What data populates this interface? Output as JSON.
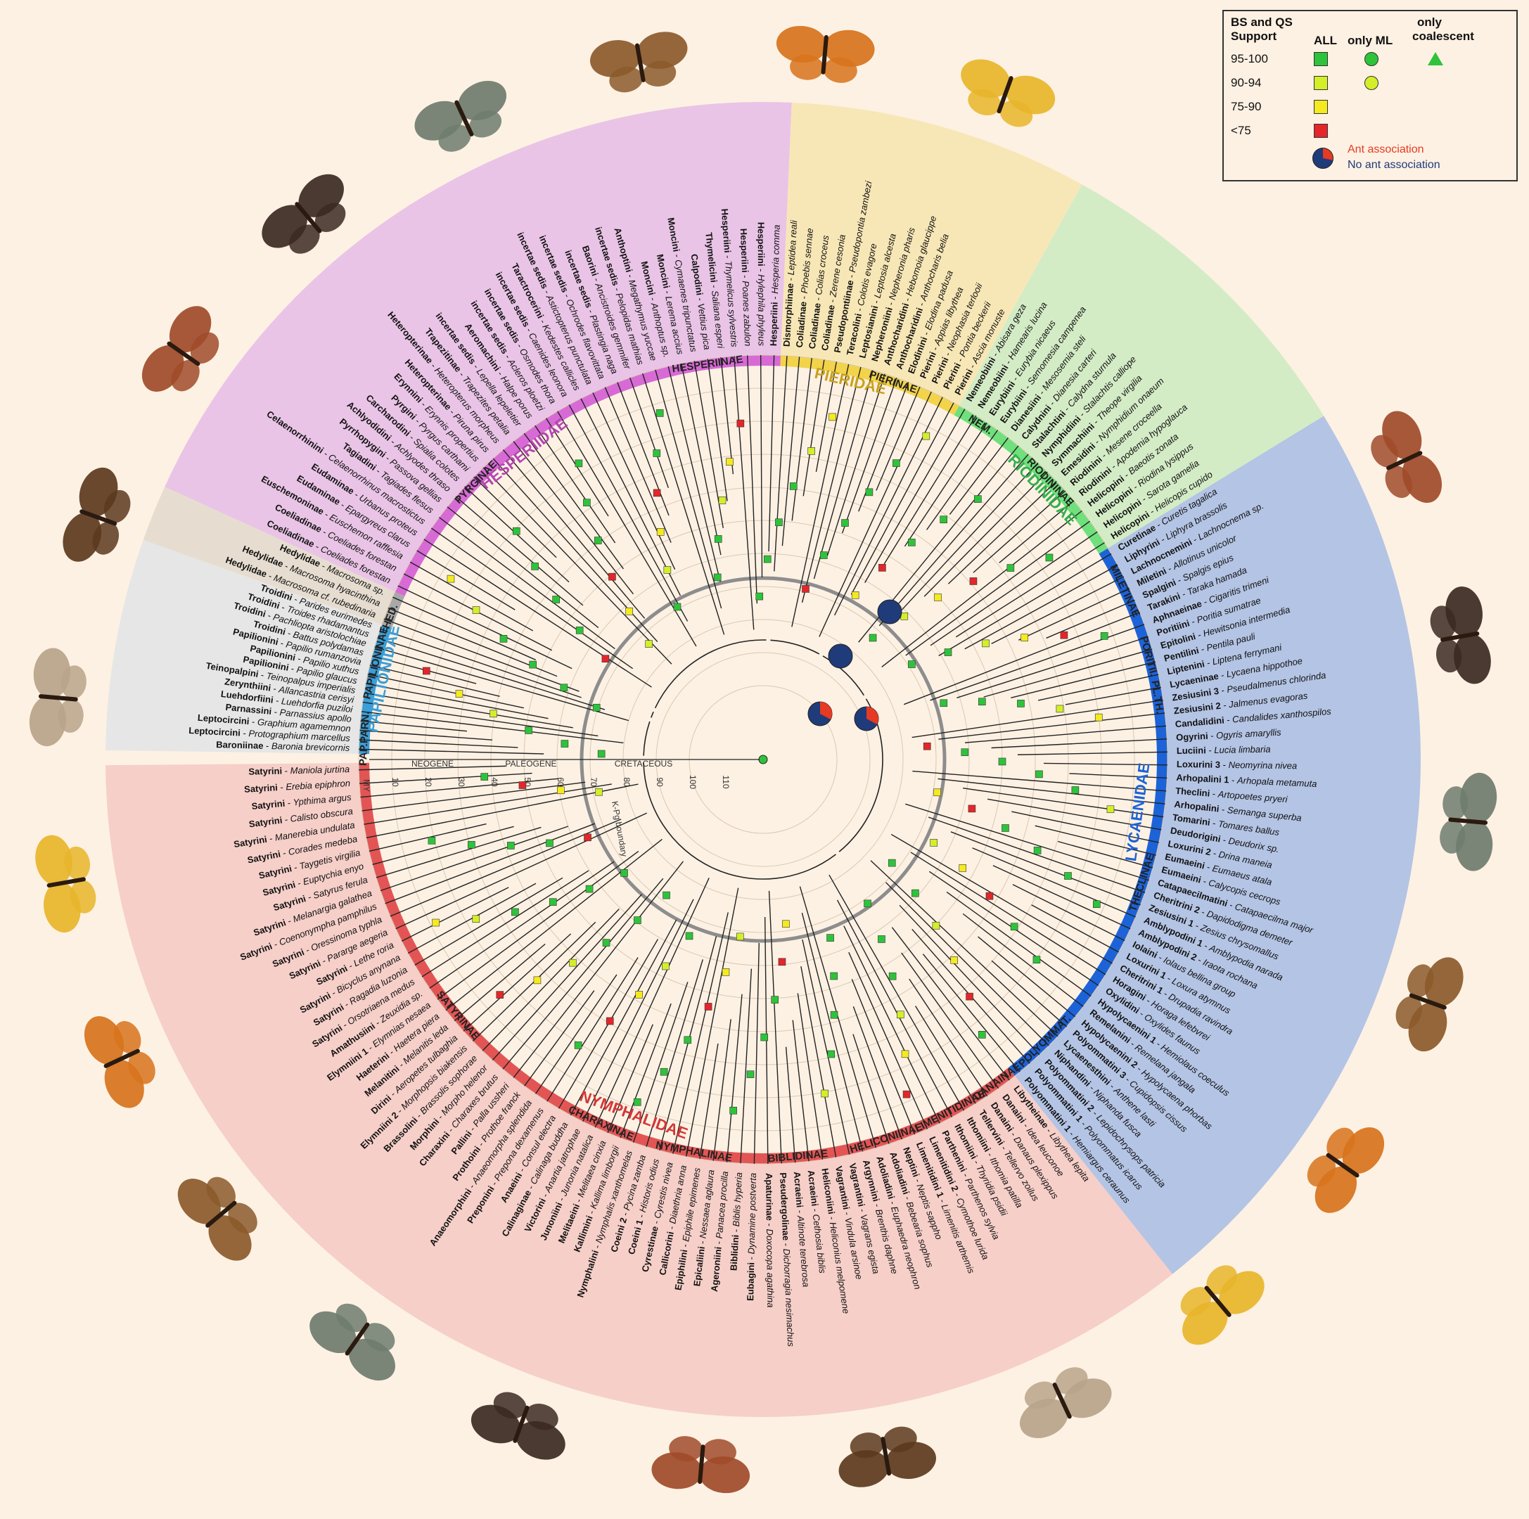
{
  "legend": {
    "title_line1": "BS and QS",
    "title_line2": "Support",
    "col_all": "ALL",
    "col_ml": "only ML",
    "col_coal_1": "only",
    "col_coal_2": "coalescent",
    "rows": [
      {
        "label": "95-100",
        "color": "#2ec33a"
      },
      {
        "label": "90-94",
        "color": "#d4ee2a"
      },
      {
        "label": "75-90",
        "color": "#f4ea1f"
      },
      {
        "label": "<75",
        "color": "#e3262a"
      }
    ],
    "ant_yes": "Ant association",
    "ant_no": "No ant association",
    "ant_yes_color": "#e63a22",
    "ant_no_color": "#1f3b7a"
  },
  "axis": {
    "unit": "MY",
    "ticks": [
      "10",
      "20",
      "30",
      "40",
      "50",
      "60",
      "70",
      "80",
      "90",
      "100",
      "110"
    ],
    "periods": [
      "NEOGENE",
      "PALEOGENE",
      "CRETACEOUS"
    ],
    "kpg": "K-Pg boundary"
  },
  "families": [
    {
      "name": "HESPERIIDAE",
      "color": "#c75bc2"
    },
    {
      "name": "PIERIDAE",
      "color": "#d7b52a"
    },
    {
      "name": "RIODINIDAE",
      "color": "#45c75a"
    },
    {
      "name": "LYCAENIDAE",
      "color": "#1d63d8"
    },
    {
      "name": "NYMPHALIDAE",
      "color": "#e04d4d"
    },
    {
      "name": "PAPILIONIDAE",
      "color": "#3b9ed8"
    }
  ],
  "subfamilies": [
    "HESPERIINAE",
    "PYRGINAE",
    "HED.",
    "PAPILIONINAE",
    "PAP.PARN.",
    "PIERINAE",
    "NEM.",
    "RIODININAE",
    "MILETINAE",
    "PORITII.",
    "PL.TH.",
    "THECLINAE",
    "POLYOMMAT.",
    "DANAINAE",
    "LIMENITIDINAE",
    "HELICONIINAE",
    "BIBLIDINAE",
    "NYMPHALINAE",
    "CHARAXINAE",
    "SATYRINAE"
  ],
  "leaves": {
    "papilionidae": [
      [
        "Baroniinae",
        "Baronia brevicornis"
      ],
      [
        "Leptocircini",
        "Protographium marcellus"
      ],
      [
        "Leptocircini",
        "Graphium agamemnon"
      ],
      [
        "Parnassini",
        "Parnassius apollo"
      ],
      [
        "Luehdorfiini",
        "Luehdorfia puziloi"
      ],
      [
        "Zerynthiini",
        "Allancastria cerisyi"
      ],
      [
        "Teinopalpini",
        "Teinopalpus imperialis"
      ],
      [
        "Papilionini",
        "Papilio glaucus"
      ],
      [
        "Papilionini",
        "Papilio xuthus"
      ],
      [
        "Papilionini",
        "Papilio rumanzovia"
      ],
      [
        "Troidini",
        "Battus polydamas"
      ],
      [
        "Troidini",
        "Pachliopta aristolochiae"
      ],
      [
        "Troidini",
        "Troides rhadamantus"
      ],
      [
        "Troidini",
        "Parides eurimedes"
      ]
    ],
    "hedylidae": [
      [
        "Hedylidae",
        "Macrosoma cf. rubedinaria"
      ],
      [
        "Hedylidae",
        "Macrosoma hyacinthina"
      ],
      [
        "Hedylidae",
        "Macrosoma sp."
      ]
    ],
    "hesperiidae": [
      [
        "Coeliadinae",
        "Coeliades forestan"
      ],
      [
        "Coeliadinae",
        "Coeliades forestan"
      ],
      [
        "Euschemoninae",
        "Euschemon rafflesia"
      ],
      [
        "Eudaminae",
        "Epargyreus clarus"
      ],
      [
        "Eudaminae",
        "Urbanus proteus"
      ],
      [
        "Celaenorrhinini",
        "Celaenorrhinus macrostictus"
      ],
      [
        "Tagiadini",
        "Tagiades flesus"
      ],
      [
        "Pyrrhopygini",
        "Passova gellias"
      ],
      [
        "Achlyodidini",
        "Achlyodes thraso"
      ],
      [
        "Carcharodini",
        "Spialia colotes"
      ],
      [
        "Pyrgini",
        "Pyrgus carthami"
      ],
      [
        "Erynnini",
        "Erynnis propertius"
      ],
      [
        "Heteropterinae",
        "Piruna pirus"
      ],
      [
        "Heteropterinae",
        "Heteropterus morpheus"
      ],
      [
        "Trapezitinae",
        "Trapezites petalia"
      ],
      [
        "incertae sedis",
        "Lepella lepeletier"
      ],
      [
        "Aeromachini",
        "Halpe porus"
      ],
      [
        "incertae sedis",
        "Acleros ploetzi"
      ],
      [
        "incertae sedis",
        "Osmodes thora"
      ],
      [
        "incertae sedis",
        "Caenides leonora"
      ],
      [
        "Taractrocerini",
        "Kedestes callicles"
      ],
      [
        "incertae sedis",
        "Astictopterus punctulata"
      ],
      [
        "incertae sedis",
        "Ochrodes flavovittata"
      ],
      [
        "incertae sedis",
        "Plastingia naga"
      ],
      [
        "Baorini",
        "Ancistroides gemmifer"
      ],
      [
        "incertae sedis",
        "Pelopidas mathias"
      ],
      [
        "Anthoptini",
        "Megathymus yuccae"
      ],
      [
        "Moncini",
        "Anthoptus sp."
      ],
      [
        "Moncini",
        "Lerema accius"
      ],
      [
        "Moncini",
        "Cymaenes tripunctatus"
      ],
      [
        "Calpodini",
        "Vettius pica"
      ],
      [
        "Thymelicini",
        "Saliana esperi"
      ],
      [
        "Hesperiini",
        "Thymelicus sylvestris"
      ],
      [
        "Hesperiini",
        "Poanes zabulon"
      ],
      [
        "Hesperiini",
        "Hylephila phyleus"
      ],
      [
        "Hesperiini",
        "Hesperia comma"
      ]
    ],
    "pieridae": [
      [
        "Dismorphiinae",
        "Leptidea reali"
      ],
      [
        "Coliadinae",
        "Phoebis sennae"
      ],
      [
        "Coliadinae",
        "Colias croceus"
      ],
      [
        "Coliadinae",
        "Zerene cesonia"
      ],
      [
        "Pseudopontiinae",
        "Pseudopontia zambezi"
      ],
      [
        "Teracolini",
        "Colotis evagore"
      ],
      [
        "Leptosianini",
        "Leptosia alcesta"
      ],
      [
        "Nepheroniini",
        "Nepheronia pharis"
      ],
      [
        "Anthocharidini",
        "Hebomoia glaucippe"
      ],
      [
        "Anthocharidini",
        "Anthocharis belia"
      ],
      [
        "Elodinini",
        "Elodina padusa"
      ],
      [
        "Pierini",
        "Appias libythea"
      ],
      [
        "Pierini",
        "Neophasia terlooii"
      ],
      [
        "Pierini",
        "Pontia beckerii"
      ],
      [
        "Pierini",
        "Ascia monuste"
      ]
    ],
    "riodinidae": [
      [
        "Nemeobiini",
        "Abisara geza"
      ],
      [
        "Nemeobiini",
        "Hamearis lucina"
      ],
      [
        "Eurybiini",
        "Eurybia nicaeus"
      ],
      [
        "Eurybiini",
        "Semomesia campenea"
      ],
      [
        "Dianesiini",
        "Mesosemia steli"
      ],
      [
        "Calydnini",
        "Dianesia carteri"
      ],
      [
        "Stalachtini",
        "Calydna sturnula"
      ],
      [
        "Nymphidiini",
        "Stalachtis calliope"
      ],
      [
        "Symmachiini",
        "Theope virgilia"
      ],
      [
        "Emesidini",
        "Nymphidium onaeum"
      ],
      [
        "Riodinini",
        "Mesene croceella"
      ],
      [
        "Riodinini",
        "Apodemia hypoglauca"
      ],
      [
        "Helicopini",
        "Baeotis zonata"
      ],
      [
        "Helicopini",
        "Riodina lysippus"
      ],
      [
        "Helicopini",
        "Sarota gamelia"
      ],
      [
        "Helicopini",
        "Helicopis cupido"
      ]
    ],
    "lycaenidae": [
      [
        "Curetinae",
        "Curetis tagalica"
      ],
      [
        "Liphyrini",
        "Liphyra brassolis"
      ],
      [
        "Lachnocnemini",
        "Lachnocnema sp."
      ],
      [
        "Miletini",
        "Allotinus unicolor"
      ],
      [
        "Spalgini",
        "Spalgis epius"
      ],
      [
        "Tarakini",
        "Taraka hamada"
      ],
      [
        "Aphnaeinae",
        "Cigaritis trimeni"
      ],
      [
        "Poritiini",
        "Poritia sumatrae"
      ],
      [
        "Epitolini",
        "Hewitsonia intermedia"
      ],
      [
        "Pentilini",
        "Pentila pauli"
      ],
      [
        "Liptenini",
        "Liptena ferrymani"
      ],
      [
        "Lycaeninae",
        "Lycaena hippothoe"
      ],
      [
        "Zesiusini 3",
        "Pseudalmenus chlorinda"
      ],
      [
        "Zesiusini 2",
        "Jalmenus evagoras"
      ],
      [
        "Candalidini",
        "Candalides xanthospilos"
      ],
      [
        "Ogyrini",
        "Ogyris amaryllis"
      ],
      [
        "Luciini",
        "Lucia limbaria"
      ],
      [
        "Loxurini 3",
        "Neomyrina nivea"
      ],
      [
        "Arhopalini 1",
        "Arhopala metamuta"
      ],
      [
        "Theclini",
        "Artopoetes pryeri"
      ],
      [
        "Arhopalini",
        "Semanga superba"
      ],
      [
        "Tomarini",
        "Tomares ballus"
      ],
      [
        "Deudorigini",
        "Deudorix sp."
      ],
      [
        "Loxurini 2",
        "Drina maneia"
      ],
      [
        "Eumaeini",
        "Eumaeus atala"
      ],
      [
        "Eumaeini",
        "Calycopis cecrops"
      ],
      [
        "Catapaecilmatini",
        "Catapaecilma major"
      ],
      [
        "Cheritrini 2",
        "Dapidodigma demeter"
      ],
      [
        "Zesiusini 1",
        "Zesius chrysomallus"
      ],
      [
        "Amblypodini 1",
        "Amblypodia narada"
      ],
      [
        "Amblypodini 2",
        "Iraota rochana"
      ],
      [
        "Iolaini",
        "Iolaus bellina group"
      ],
      [
        "Loxurini 1",
        "Loxura atymnus"
      ],
      [
        "Cheritrini 1",
        "Drupadia ravindra"
      ],
      [
        "Horagini",
        "Horaga lefebvrei"
      ],
      [
        "Oxylidini",
        "Oxylides faunus"
      ],
      [
        "Hypolycaenini 1",
        "Hemiolaus coeculus"
      ],
      [
        "Remelanini",
        "Remelana jangala"
      ],
      [
        "Hypolycaenini 2",
        "Hypolycaena phorbas"
      ],
      [
        "Polyommatini 3",
        "Cupidopsis cissus"
      ],
      [
        "Lycaenesthini",
        "Anthene lasti"
      ],
      [
        "Niphandini",
        "Niphanda fusca"
      ],
      [
        "Polyommatini 2",
        "Lepidochrysops patricia"
      ],
      [
        "Polyommatini 1",
        "Polyommatus icarus"
      ],
      [
        "Polyommatini 1",
        "Hemiargus ceraunus"
      ]
    ],
    "nymphalidae": [
      [
        "Libytheinae",
        "Libythea lepita"
      ],
      [
        "Danaini",
        "Idea leuconoe"
      ],
      [
        "Danaini",
        "Danaus plexippus"
      ],
      [
        "Tellervini",
        "Tellervo zoilus"
      ],
      [
        "Ithomiini",
        "Ithomia patilla"
      ],
      [
        "Ithomiini",
        "Thyridia psidii"
      ],
      [
        "Parthenini",
        "Parthenos sylvia"
      ],
      [
        "Limenitidini 2",
        "Cymothoe lurida"
      ],
      [
        "Limenitidini 1",
        "Limenitis arthemis"
      ],
      [
        "Neptini",
        "Neptis sappho"
      ],
      [
        "Adoliadini",
        "Bebearia sophus"
      ],
      [
        "Adoliadini",
        "Euphaedra neophron"
      ],
      [
        "Argynnini",
        "Brenthis daphne"
      ],
      [
        "Vagrantini",
        "Vagrans egista"
      ],
      [
        "Vagrantini",
        "Vindula arsinoe"
      ],
      [
        "Heliconiini",
        "Heliconius melpomene"
      ],
      [
        "Acraeini",
        "Cethosia biblis"
      ],
      [
        "Acraeini",
        "Altinote terebrosa"
      ],
      [
        "Pseudergolinae",
        "Dichorragia nesimachus"
      ],
      [
        "Apaturinae",
        "Doxocopa agathina"
      ],
      [
        "Eubagini",
        "Dynamine postverta"
      ],
      [
        "Biblidini",
        "Biblis hyperia"
      ],
      [
        "Ageroniini",
        "Panacea procilla"
      ],
      [
        "Epicaliini",
        "Nessaea aglaura"
      ],
      [
        "Epiphilini",
        "Epiphile epimenes"
      ],
      [
        "Callicorini",
        "Diaethria anna"
      ],
      [
        "Cyrestinae",
        "Cyrestis nivea"
      ],
      [
        "Coeini 1",
        "Historis odius"
      ],
      [
        "Coeini 2",
        "Pycina zamba"
      ],
      [
        "Nymphalini",
        "Nymphalis xanthomelas"
      ],
      [
        "Kallimini",
        "Kallima limborgii"
      ],
      [
        "Melitaeini",
        "Melitaea cinxia"
      ],
      [
        "Junoniini",
        "Junonia natalica"
      ],
      [
        "Victorini",
        "Anartia jatrophae"
      ],
      [
        "Calinaginae",
        "Calinaga buddha"
      ],
      [
        "Anaeini",
        "Consul electra"
      ],
      [
        "Preponini",
        "Prepona dexamenus"
      ],
      [
        "Anaeomorphini",
        "Anaeomorpha splendida"
      ],
      [
        "Prothoini",
        "Prothoe franck"
      ],
      [
        "Pallini",
        "Palla ussheri"
      ],
      [
        "Charaxini",
        "Charaxes brutus"
      ],
      [
        "Morphini",
        "Morpho helenor"
      ],
      [
        "Brassolini",
        "Brassolis sophorae"
      ],
      [
        "Elymniini 2",
        "Morphopsis biakensis"
      ],
      [
        "Dirini",
        "Aeropetes tulbaghia"
      ],
      [
        "Melanitini",
        "Melanitis leda"
      ],
      [
        "Haeterini",
        "Haetera piera"
      ],
      [
        "Elymniini 1",
        "Elymnias nesaea"
      ],
      [
        "Amathusiini",
        "Zeuxidia sp."
      ],
      [
        "Satyrini",
        "Orsotriaena medus"
      ],
      [
        "Satyrini",
        "Ragadia luzonia"
      ],
      [
        "Satyrini",
        "Bicyclus anynana"
      ],
      [
        "Satyrini",
        "Lethe roria"
      ],
      [
        "Satyrini",
        "Pararge aegeria"
      ],
      [
        "Satyrini",
        "Oressinoma typhla"
      ],
      [
        "Satyrini",
        "Coenonympha pamphilus"
      ],
      [
        "Satyrini",
        "Melanargia galathea"
      ],
      [
        "Satyrini",
        "Satyrus ferula"
      ],
      [
        "Satyrini",
        "Euptychia enyo"
      ],
      [
        "Satyrini",
        "Taygetis virgilia"
      ],
      [
        "Satyrini",
        "Corades medeba"
      ],
      [
        "Satyrini",
        "Manerebia undulata"
      ],
      [
        "Satyrini",
        "Calisto obscura"
      ],
      [
        "Satyrini",
        "Ypthima argus"
      ],
      [
        "Satyrini",
        "Erebia epiphron"
      ],
      [
        "Satyrini",
        "Maniola jurtina"
      ]
    ]
  }
}
